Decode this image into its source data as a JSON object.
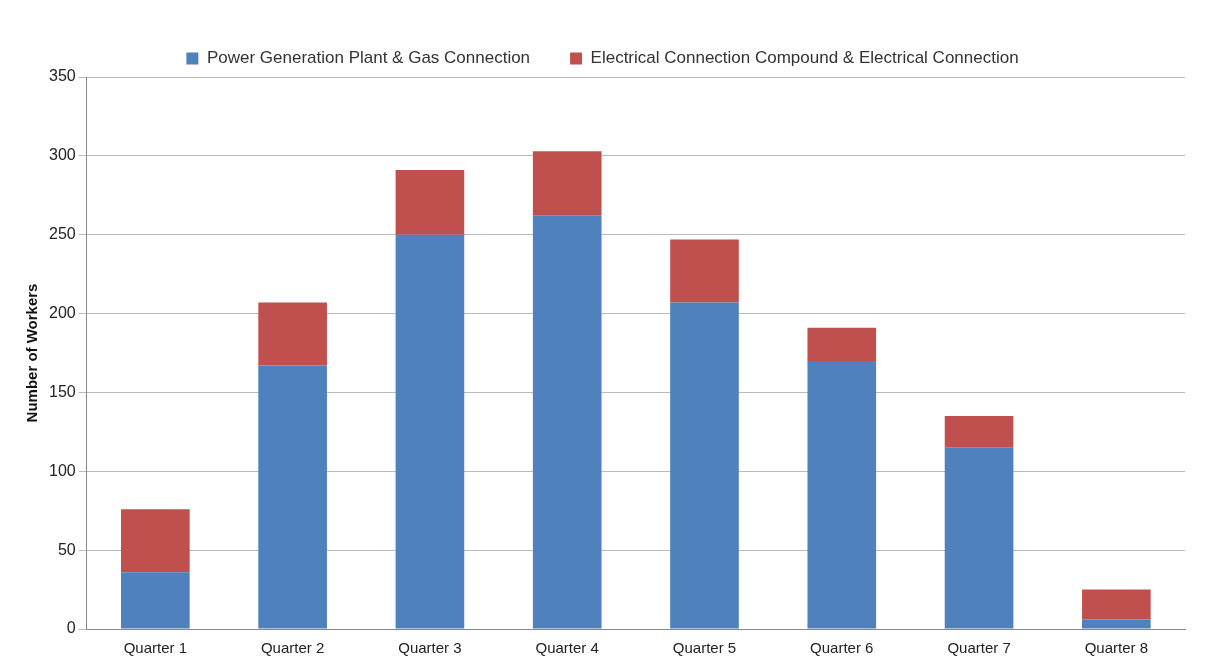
{
  "chart_data": {
    "type": "bar",
    "stacked": true,
    "ylabel": "Number of Workers",
    "categories": [
      "Quarter 1",
      "Quarter 2",
      "Quarter 3",
      "Quarter 4",
      "Quarter 5",
      "Quarter 6",
      "Quarter 7",
      "Quarter 8"
    ],
    "series": [
      {
        "name": "Power Generation Plant & Gas Connection",
        "color": "#4f81bd",
        "values": [
          36,
          167,
          250,
          262,
          207,
          170,
          115,
          6
        ]
      },
      {
        "name": "Electrical Connection Compound & Electrical Connection",
        "color": "#c0504d",
        "values": [
          40,
          40,
          41,
          41,
          40,
          21,
          20,
          19
        ]
      }
    ],
    "ylim": [
      0,
      350
    ],
    "yticks": [
      0,
      50,
      100,
      150,
      200,
      250,
      300,
      350
    ],
    "grid": "y",
    "legend": "top"
  }
}
